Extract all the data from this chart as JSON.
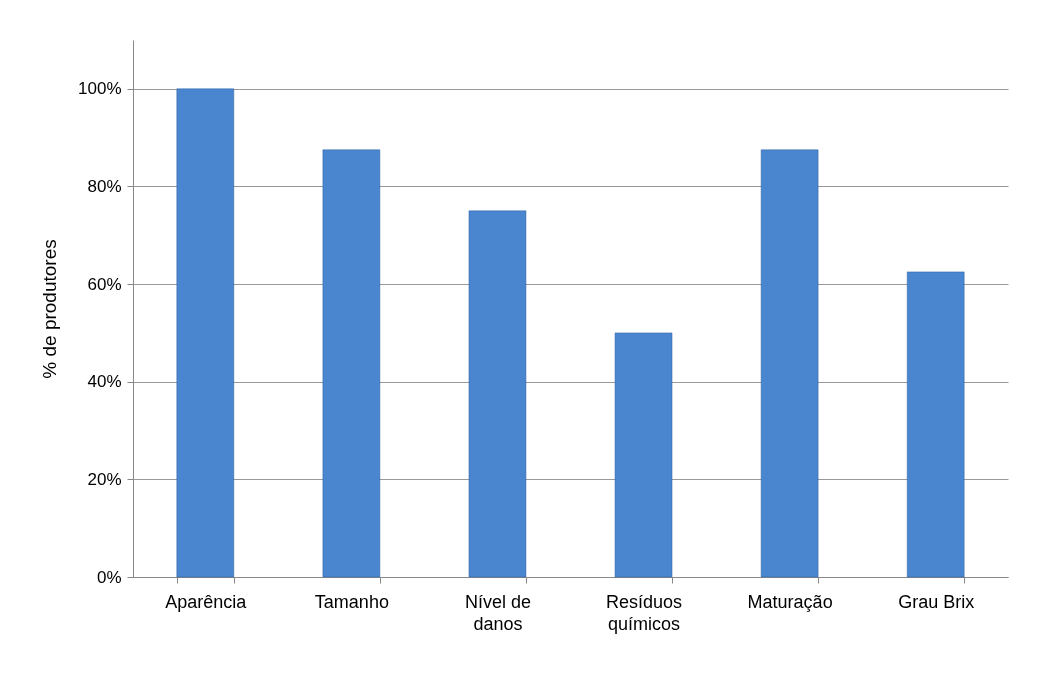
{
  "chart_data": {
    "type": "bar",
    "ylabel": "% de produtores",
    "categories": [
      "Aparência",
      "Tamanho",
      "Nível de danos",
      "Resíduos químicos",
      "Maturação",
      "Grau Brix"
    ],
    "values": [
      100,
      87.5,
      75,
      50,
      87.5,
      62.5
    ],
    "color": "#4a86d0",
    "ylim": [
      0,
      110
    ],
    "yticks": [
      {
        "value": 0,
        "label": "0%"
      },
      {
        "value": 20,
        "label": "20%"
      },
      {
        "value": 40,
        "label": "40%"
      },
      {
        "value": 60,
        "label": "60%"
      },
      {
        "value": 80,
        "label": "80%"
      },
      {
        "value": 100,
        "label": "100%"
      }
    ],
    "grid": "y"
  }
}
